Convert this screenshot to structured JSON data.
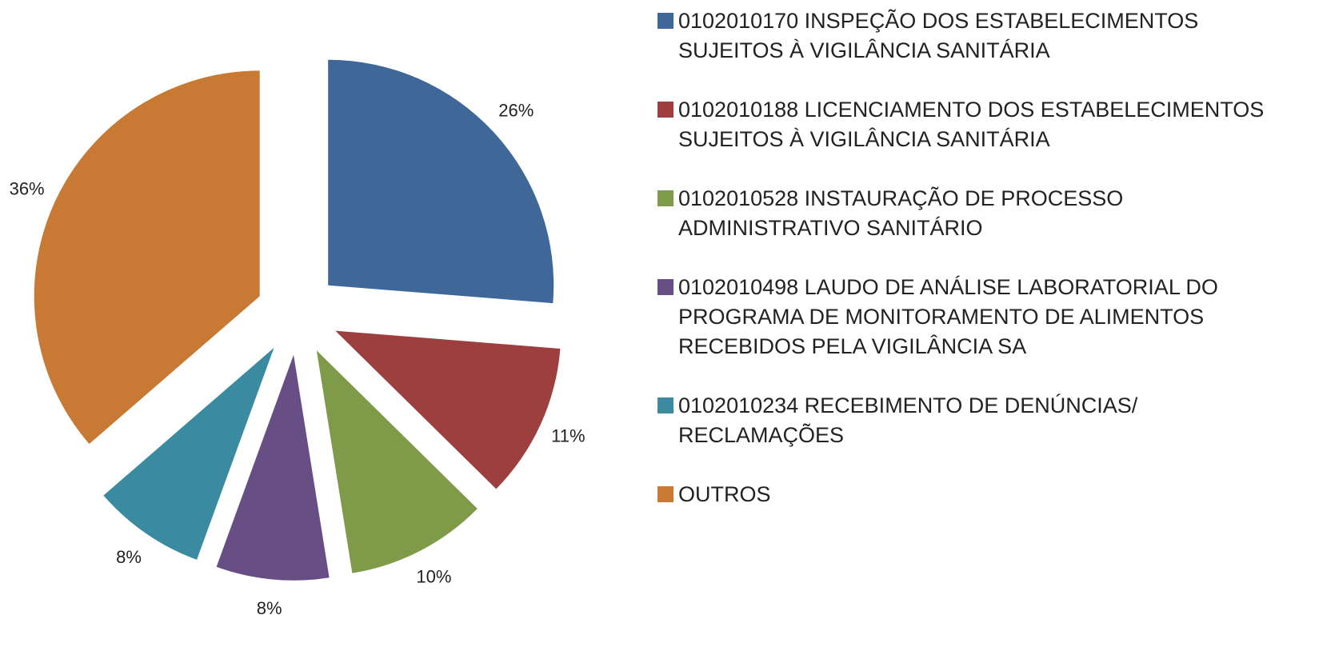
{
  "chart_data": {
    "type": "pie",
    "categories": [
      "0102010170 INSPEÇÃO DOS ESTABELECIMENTOS SUJEITOS À VIGILÂNCIA SANITÁRIA",
      "0102010188 LICENCIAMENTO DOS ESTABELECIMENTOS SUJEITOS À VIGILÂNCIA SANITÁRIA",
      "0102010528 INSTAURAÇÃO DE PROCESSO ADMINISTRATIVO SANITÁRIO",
      "0102010498 LAUDO DE ANÁLISE LABORATORIAL DO PROGRAMA DE MONITORAMENTO DE ALIMENTOS RECEBIDOS PELA VIGILÂNCIA SA",
      "0102010234 RECEBIMENTO DE DENÚNCIAS/ RECLAMAÇÕES",
      "OUTROS"
    ],
    "values": [
      26,
      11,
      10,
      8,
      8,
      36
    ],
    "value_labels": [
      "26%",
      "11%",
      "10%",
      "8%",
      "8%",
      "36%"
    ],
    "colors": [
      "#3f6899",
      "#9c3f3e",
      "#7f9a48",
      "#674f86",
      "#3a8ba0",
      "#c87934"
    ],
    "legend": "right"
  }
}
